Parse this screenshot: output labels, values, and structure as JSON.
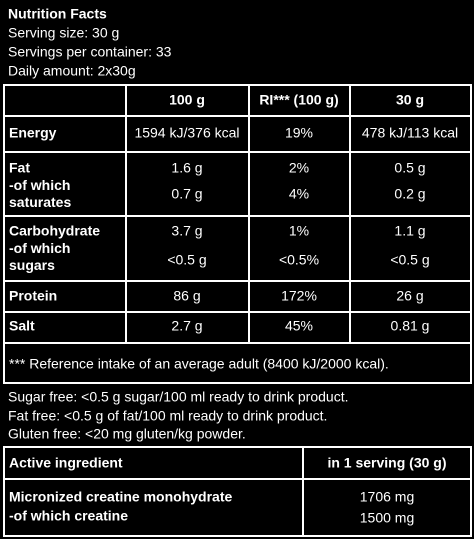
{
  "header": {
    "title": "Nutrition Facts",
    "lines": [
      "Serving size: 30 g",
      "Servings per container: 33",
      "Daily amount: 2x30g"
    ]
  },
  "table": {
    "columns": [
      "100 g",
      "RI*** (100 g)",
      "30 g"
    ],
    "rows": [
      {
        "labels": [
          "Energy"
        ],
        "values": [
          [
            "1594 kJ/376 kcal"
          ],
          [
            "19%"
          ],
          [
            "478 kJ/113 kcal"
          ]
        ]
      },
      {
        "labels": [
          "Fat",
          "-of which saturates"
        ],
        "values": [
          [
            "1.6 g",
            "0.7 g"
          ],
          [
            "2%",
            "4%"
          ],
          [
            "0.5 g",
            "0.2 g"
          ]
        ]
      },
      {
        "labels": [
          "Carbohydrate",
          "-of which sugars"
        ],
        "values": [
          [
            "3.7 g",
            "<0.5 g"
          ],
          [
            "1%",
            "<0.5%"
          ],
          [
            "1.1 g",
            "<0.5 g"
          ]
        ]
      },
      {
        "labels": [
          "Protein"
        ],
        "values": [
          [
            "86 g"
          ],
          [
            "172%"
          ],
          [
            "26 g"
          ]
        ]
      },
      {
        "labels": [
          "Salt"
        ],
        "values": [
          [
            "2.7 g"
          ],
          [
            "45%"
          ],
          [
            "0.81 g"
          ]
        ]
      }
    ],
    "footnote": "*** Reference intake of an average adult (8400 kJ/2000 kcal)."
  },
  "notes": [
    "Sugar free: <0.5 g sugar/100 ml ready to drink product.",
    "Fat free: <0.5 g of fat/100 ml ready to drink product.",
    "Gluten free: <20 mg gluten/kg powder."
  ],
  "active": {
    "columns": [
      "Active ingredient",
      "in 1 serving (30 g)"
    ],
    "labels": [
      "Micronized creatine monohydrate",
      "-of which creatine"
    ],
    "values": [
      "1706 mg",
      "1500 mg"
    ]
  }
}
